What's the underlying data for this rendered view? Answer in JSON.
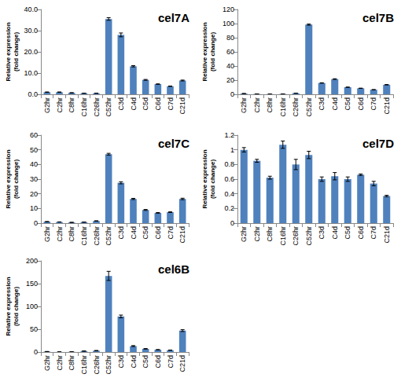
{
  "chart_data": [
    {
      "type": "bar",
      "title": "cel7A",
      "ylabel": "Relative expression\n(fold change)",
      "categories": [
        "G2hr",
        "C2hr",
        "C8hr",
        "C16hr",
        "C26hr",
        "C52hr",
        "C3d",
        "C4d",
        "C5d",
        "C6d",
        "C7d",
        "C21d"
      ],
      "values": [
        1.0,
        1.0,
        0.7,
        0.5,
        0.5,
        35.5,
        28.0,
        13.2,
        6.8,
        4.8,
        3.8,
        6.5
      ],
      "errors": [
        0.1,
        0.1,
        0.05,
        0.05,
        0.05,
        0.6,
        0.9,
        0.3,
        0.2,
        0.1,
        0.1,
        0.2
      ],
      "color": "#4f81bd",
      "ylim": [
        0,
        40
      ],
      "yticks": [
        {
          "value": 0,
          "label": "0.0"
        },
        {
          "value": 10,
          "label": "10.0"
        },
        {
          "value": 20,
          "label": "20.0"
        },
        {
          "value": 30,
          "label": "30.0"
        },
        {
          "value": 40,
          "label": "40.0"
        }
      ],
      "grid": false
    },
    {
      "type": "bar",
      "title": "cel7B",
      "ylabel": "Relative expression\n(fold change)",
      "categories": [
        "G2hr",
        "C2hr",
        "C8hr",
        "C16hr",
        "C26hr",
        "C52hr",
        "C3d",
        "C4d",
        "C5d",
        "C6d",
        "C7d",
        "C21d"
      ],
      "values": [
        1.0,
        0.5,
        0.3,
        0.5,
        1.5,
        98.5,
        16.0,
        21.5,
        10.0,
        8.5,
        6.5,
        13.5
      ],
      "errors": [
        0.1,
        0.05,
        0.05,
        0.05,
        0.1,
        0.8,
        0.3,
        0.5,
        0.2,
        0.2,
        0.2,
        0.3
      ],
      "color": "#4f81bd",
      "ylim": [
        0,
        120
      ],
      "yticks": [
        0,
        20,
        40,
        60,
        80,
        100,
        120
      ],
      "grid": false
    },
    {
      "type": "bar",
      "title": "cel7C",
      "ylabel": "Relative expression\n(fold change)",
      "categories": [
        "G2hr",
        "C2hr",
        "C8hr",
        "C16hr",
        "C26hr",
        "C52hr",
        "C3d",
        "C4d",
        "C5d",
        "C6d",
        "C7d",
        "C21d"
      ],
      "values": [
        1.0,
        0.8,
        0.5,
        0.7,
        1.5,
        47.0,
        27.5,
        16.5,
        9.0,
        7.0,
        7.5,
        16.5
      ],
      "errors": [
        0.1,
        0.05,
        0.05,
        0.05,
        0.1,
        0.6,
        0.7,
        0.4,
        0.3,
        0.2,
        0.2,
        0.5
      ],
      "color": "#4f81bd",
      "ylim": [
        0,
        60
      ],
      "yticks": [
        0,
        10,
        20,
        30,
        40,
        50,
        60
      ],
      "grid": false
    },
    {
      "type": "bar",
      "title": "cel7D",
      "ylabel": "Relative expression\n(fold change)",
      "categories": [
        "G2hr",
        "C2hr",
        "C8hr",
        "C16hr",
        "C26hr",
        "C52hr",
        "C3d",
        "C4d",
        "C5d",
        "C6d",
        "C7d",
        "C21d"
      ],
      "values": [
        1.0,
        0.85,
        0.62,
        1.07,
        0.8,
        0.93,
        0.6,
        0.64,
        0.6,
        0.66,
        0.54,
        0.37
      ],
      "errors": [
        0.03,
        0.02,
        0.02,
        0.05,
        0.07,
        0.05,
        0.03,
        0.05,
        0.03,
        0.01,
        0.03,
        0.01
      ],
      "color": "#4f81bd",
      "ylim": [
        0,
        1.2
      ],
      "yticks": [
        0,
        0.2,
        0.4,
        0.6,
        0.8,
        1,
        1.2
      ],
      "grid": false
    },
    {
      "type": "bar",
      "title": "cel6B",
      "ylabel": "Relative expression\n(fold change)",
      "categories": [
        "G2hr",
        "C2hr",
        "C8hr",
        "C16hr",
        "C26hr",
        "C52hr",
        "C3d",
        "C4d",
        "C5d",
        "C6d",
        "C7d",
        "C21d"
      ],
      "values": [
        1.0,
        0.3,
        0.5,
        2.0,
        3.0,
        167.0,
        78.0,
        13.0,
        7.0,
        5.0,
        4.0,
        47.0
      ],
      "errors": [
        0.2,
        0.1,
        0.1,
        0.2,
        0.3,
        10.0,
        3.0,
        1.0,
        0.5,
        0.3,
        0.3,
        2.0
      ],
      "color": "#4f81bd",
      "ylim": [
        0,
        200
      ],
      "yticks": [
        0,
        50,
        100,
        150,
        200
      ],
      "grid": false
    }
  ]
}
